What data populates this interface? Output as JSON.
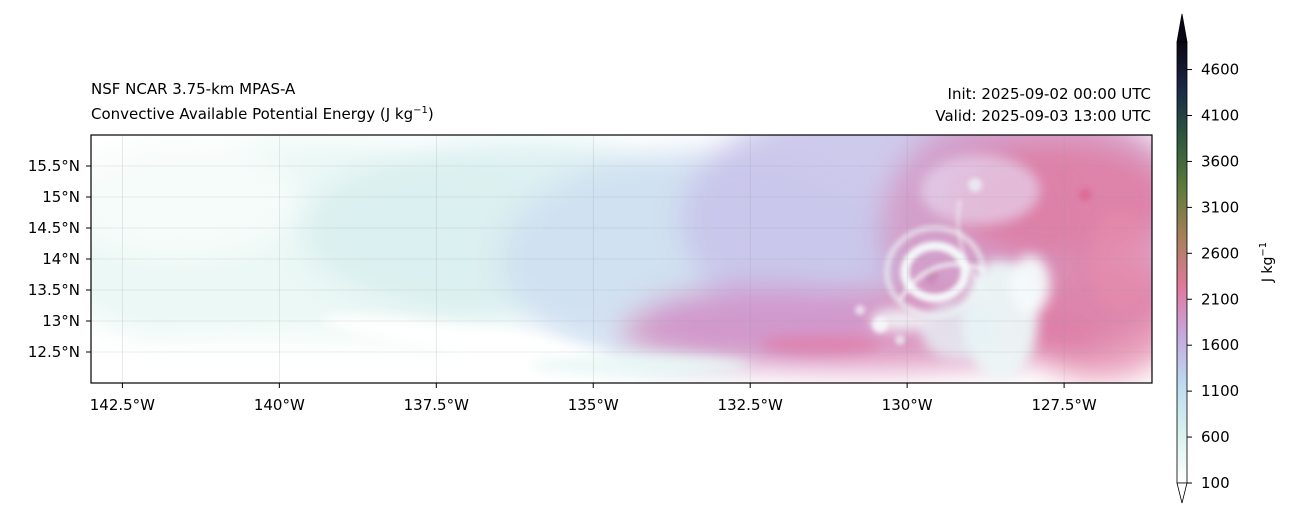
{
  "header": {
    "left_line1": "NSF NCAR 3.75-km MPAS-A",
    "left_line2": "Convective Available Potential Energy (J kg",
    "left_line2_sup": "−1",
    "left_line2_end": ")",
    "right_line1": "Init: 2025-09-02 00:00 UTC",
    "right_line2": "Valid: 2025-09-03 13:00 UTC"
  },
  "chart_data": {
    "type": "heatmap",
    "title": "Convective Available Potential Energy (J kg−1)",
    "subtitle": "NSF NCAR 3.75-km MPAS-A",
    "x_axis": {
      "range": [
        -143.0,
        -126.1
      ],
      "ticks": [
        -142.5,
        -140,
        -137.5,
        -135,
        -132.5,
        -130,
        -127.5
      ],
      "tick_labels": [
        "142.5°W",
        "140°W",
        "137.5°W",
        "135°W",
        "132.5°W",
        "130°W",
        "127.5°W"
      ]
    },
    "y_axis": {
      "range": [
        12.0,
        16.0
      ],
      "ticks": [
        12.5,
        13,
        13.5,
        14,
        14.5,
        15,
        15.5
      ],
      "tick_labels": [
        "12.5°N",
        "13°N",
        "13.5°N",
        "14°N",
        "14.5°N",
        "15°N",
        "15.5°N"
      ]
    },
    "grid": true,
    "colorbar": {
      "label": "J kg",
      "label_sup": "−1",
      "min": 100,
      "max": 4900,
      "ticks": [
        100,
        600,
        1100,
        1600,
        2100,
        2600,
        3100,
        3600,
        4100,
        4600
      ],
      "tick_labels": [
        "100",
        "600",
        "1100",
        "1600",
        "2100",
        "2600",
        "3100",
        "3600",
        "4100",
        "4600"
      ],
      "colors": [
        "#ffffff",
        "#d9f2ee",
        "#bcdcf0",
        "#c6a8e0",
        "#e0799d",
        "#a8805a",
        "#607a3a",
        "#2e5a3e",
        "#1b2a48",
        "#0a0714"
      ],
      "extend": "both"
    },
    "features": [
      {
        "name": "tropical cyclone center",
        "lon": -129.7,
        "lat": 13.72
      }
    ]
  }
}
